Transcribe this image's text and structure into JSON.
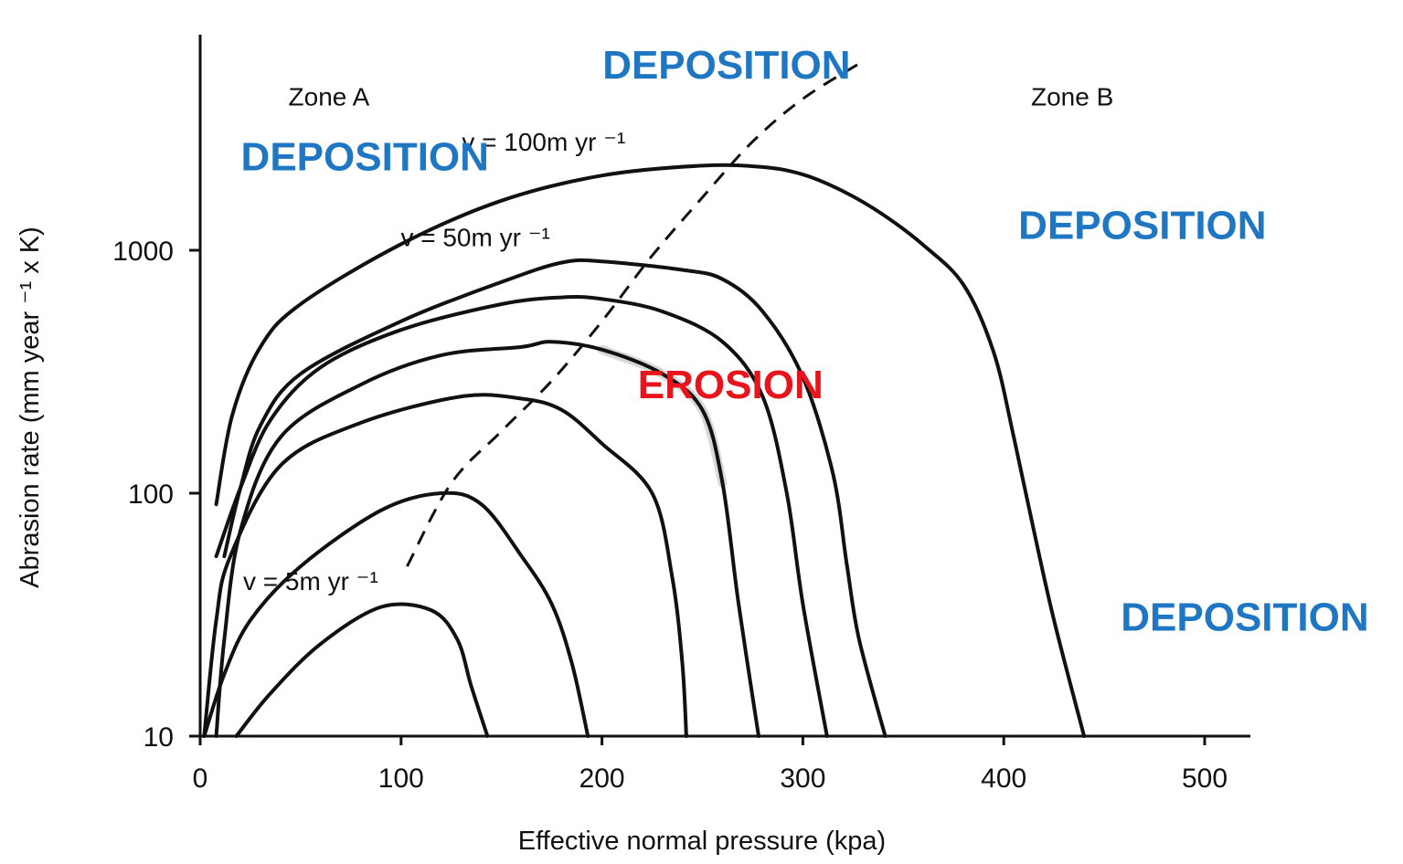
{
  "chart_data": {
    "type": "line",
    "y_scale": "log",
    "xlabel": "Effective normal pressure (kpa)",
    "ylabel": "Abrasion rate (mm year ⁻¹ x K)",
    "xlim": [
      0,
      520
    ],
    "ylim": [
      10,
      7000
    ],
    "x_ticks": [
      0,
      100,
      200,
      300,
      400,
      500
    ],
    "x_tick_labels": [
      "0",
      "100",
      "200",
      "300",
      "400",
      "500"
    ],
    "y_ticks": [
      10,
      100,
      1000
    ],
    "y_tick_labels": [
      "10",
      "100",
      "1000"
    ],
    "zones": [
      {
        "label": "Zone A",
        "x": 55,
        "y": 4300
      },
      {
        "label": "Zone B",
        "x": 425,
        "y": 4300
      }
    ],
    "regions": [
      {
        "label": "DEPOSITION",
        "kind": "deposition",
        "x": 262,
        "y": 5800
      },
      {
        "label": "DEPOSITION",
        "kind": "deposition",
        "x": 82,
        "y": 2430
      },
      {
        "label": "DEPOSITION",
        "kind": "deposition",
        "x": 469,
        "y": 1270
      },
      {
        "label": "DEPOSITION",
        "kind": "deposition",
        "x": 520,
        "y": 31
      },
      {
        "label": "EROSION",
        "kind": "erosion",
        "x": 264,
        "y": 280
      }
    ],
    "colors": {
      "deposition": "#1f77c4",
      "erosion": "#e8131b",
      "lines": "#111111"
    },
    "series": [
      {
        "name": "v = 100m yr ⁻¹",
        "label_pos": {
          "x": 171,
          "y": 2570
        },
        "points": [
          [
            8,
            90
          ],
          [
            16,
            210
          ],
          [
            30,
            400
          ],
          [
            50,
            600
          ],
          [
            100,
            1060
          ],
          [
            150,
            1600
          ],
          [
            200,
            2030
          ],
          [
            250,
            2230
          ],
          [
            280,
            2200
          ],
          [
            300,
            2050
          ],
          [
            320,
            1750
          ],
          [
            340,
            1400
          ],
          [
            360,
            1050
          ],
          [
            380,
            720
          ],
          [
            395,
            380
          ],
          [
            405,
            170
          ],
          [
            415,
            70
          ],
          [
            425,
            30
          ],
          [
            440,
            10
          ]
        ]
      },
      {
        "name": "v = 50m yr ⁻¹",
        "label_pos": {
          "x": 137,
          "y": 1040
        },
        "points": [
          [
            12,
            55
          ],
          [
            20,
            105
          ],
          [
            30,
            190
          ],
          [
            50,
            310
          ],
          [
            100,
            510
          ],
          [
            150,
            740
          ],
          [
            180,
            890
          ],
          [
            200,
            900
          ],
          [
            240,
            830
          ],
          [
            260,
            760
          ],
          [
            280,
            560
          ],
          [
            300,
            300
          ],
          [
            315,
            120
          ],
          [
            322,
            50
          ],
          [
            328,
            25
          ],
          [
            341,
            10
          ]
        ]
      },
      {
        "name": "",
        "points": [
          [
            8,
            55
          ],
          [
            20,
            105
          ],
          [
            35,
            200
          ],
          [
            60,
            330
          ],
          [
            100,
            470
          ],
          [
            150,
            600
          ],
          [
            180,
            640
          ],
          [
            200,
            630
          ],
          [
            230,
            560
          ],
          [
            260,
            420
          ],
          [
            280,
            250
          ],
          [
            292,
            100
          ],
          [
            300,
            35
          ],
          [
            312,
            10
          ]
        ]
      },
      {
        "name": "",
        "points": [
          [
            8,
            10
          ],
          [
            12,
            25
          ],
          [
            20,
            70
          ],
          [
            40,
            170
          ],
          [
            80,
            280
          ],
          [
            120,
            370
          ],
          [
            160,
            400
          ],
          [
            175,
            420
          ],
          [
            200,
            390
          ],
          [
            230,
            310
          ],
          [
            250,
            220
          ],
          [
            260,
            110
          ],
          [
            268,
            35
          ],
          [
            278,
            10
          ]
        ]
      },
      {
        "name": "",
        "points": [
          [
            2,
            10
          ],
          [
            8,
            30
          ],
          [
            15,
            55
          ],
          [
            40,
            130
          ],
          [
            80,
            195
          ],
          [
            130,
            250
          ],
          [
            160,
            245
          ],
          [
            180,
            220
          ],
          [
            200,
            160
          ],
          [
            225,
            100
          ],
          [
            235,
            45
          ],
          [
            240,
            20
          ],
          [
            242,
            10
          ]
        ]
      },
      {
        "name": "",
        "points": [
          [
            2,
            10
          ],
          [
            12,
            18
          ],
          [
            25,
            30
          ],
          [
            50,
            50
          ],
          [
            90,
            85
          ],
          [
            120,
            100
          ],
          [
            140,
            90
          ],
          [
            160,
            55
          ],
          [
            175,
            35
          ],
          [
            185,
            20
          ],
          [
            193,
            10
          ]
        ]
      },
      {
        "name": "v = 5m yr ⁻¹",
        "label_pos": {
          "x": 55,
          "y": 40
        },
        "points": [
          [
            18,
            10
          ],
          [
            35,
            15
          ],
          [
            60,
            24
          ],
          [
            90,
            34
          ],
          [
            115,
            33
          ],
          [
            128,
            25
          ],
          [
            135,
            16
          ],
          [
            143,
            10
          ]
        ]
      }
    ],
    "boundary": {
      "style": "dashed",
      "points": [
        [
          103,
          50
        ],
        [
          125,
          110
        ],
        [
          150,
          180
        ],
        [
          175,
          290
        ],
        [
          200,
          510
        ],
        [
          225,
          950
        ],
        [
          250,
          1650
        ],
        [
          275,
          2800
        ],
        [
          300,
          4200
        ],
        [
          330,
          6000
        ]
      ]
    },
    "highlight_segment": {
      "series_index": 3,
      "x_range": [
        190,
        260
      ],
      "color": "#d8d8d8"
    }
  }
}
